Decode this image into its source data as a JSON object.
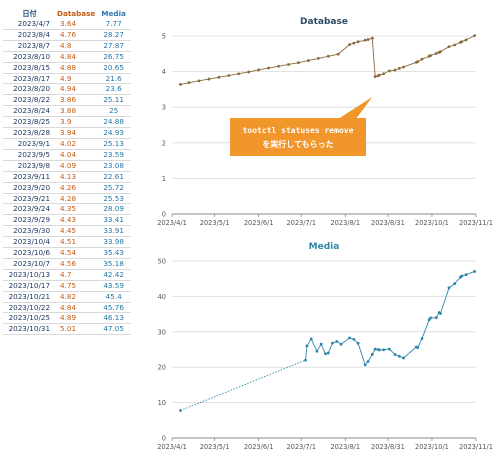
{
  "table": {
    "headers": {
      "date": "日付",
      "db": "Database",
      "media": "Media"
    },
    "rows": [
      {
        "date": "2023/4/7",
        "db": "3.64",
        "media": "7.77"
      },
      {
        "date": "2023/8/4",
        "db": "4.76",
        "media": "28.27"
      },
      {
        "date": "2023/8/7",
        "db": "4.8",
        "media": "27.87"
      },
      {
        "date": "2023/8/10",
        "db": "4.84",
        "media": "26.75"
      },
      {
        "date": "2023/8/15",
        "db": "4.88",
        "media": "20.65"
      },
      {
        "date": "2023/8/17",
        "db": "4.9",
        "media": "21.6"
      },
      {
        "date": "2023/8/20",
        "db": "4.94",
        "media": "23.6"
      },
      {
        "date": "2023/8/22",
        "db": "3.86",
        "media": "25.11"
      },
      {
        "date": "2023/8/24",
        "db": "3.88",
        "media": "25"
      },
      {
        "date": "2023/8/25",
        "db": "3.9",
        "media": "24.88"
      },
      {
        "date": "2023/8/28",
        "db": "3.94",
        "media": "24.93"
      },
      {
        "date": "2023/9/1",
        "db": "4.02",
        "media": "25.13"
      },
      {
        "date": "2023/9/5",
        "db": "4.04",
        "media": "23.59"
      },
      {
        "date": "2023/9/8",
        "db": "4.09",
        "media": "23.08"
      },
      {
        "date": "2023/9/11",
        "db": "4.13",
        "media": "22.61"
      },
      {
        "date": "2023/9/20",
        "db": "4.26",
        "media": "25.72"
      },
      {
        "date": "2023/9/21",
        "db": "4.28",
        "media": "25.53"
      },
      {
        "date": "2023/9/24",
        "db": "4.35",
        "media": "28.09"
      },
      {
        "date": "2023/9/29",
        "db": "4.43",
        "media": "33.41"
      },
      {
        "date": "2023/9/30",
        "db": "4.45",
        "media": "33.91"
      },
      {
        "date": "2023/10/4",
        "db": "4.51",
        "media": "33.98"
      },
      {
        "date": "2023/10/6",
        "db": "4.54",
        "media": "35.43"
      },
      {
        "date": "2023/10/7",
        "db": "4.56",
        "media": "35.18"
      },
      {
        "date": "2023/10/13",
        "db": "4.7",
        "media": "42.42"
      },
      {
        "date": "2023/10/17",
        "db": "4.75",
        "media": "43.59"
      },
      {
        "date": "2023/10/21",
        "db": "4.82",
        "media": "45.4"
      },
      {
        "date": "2023/10/22",
        "db": "4.84",
        "media": "45.76"
      },
      {
        "date": "2023/10/25",
        "db": "4.89",
        "media": "46.13"
      },
      {
        "date": "2023/10/31",
        "db": "5.01",
        "media": "47.05"
      }
    ]
  },
  "colors": {
    "db": "#c55a11",
    "media": "#2e86ab",
    "db_line": "#8b6a3e",
    "callout": "#f0962b"
  },
  "chart_data": [
    {
      "type": "line",
      "title": "Database",
      "xlabel": "",
      "ylabel": "",
      "x_ticks": [
        "2023/4/1",
        "2023/5/1",
        "2023/6/1",
        "2023/7/1",
        "2023/8/1",
        "2023/8/31",
        "2023/10/1",
        "2023/11/1"
      ],
      "xlim": [
        "2023/4/1",
        "2023/11/1"
      ],
      "ylim": [
        0,
        5
      ],
      "y_ticks": [
        0,
        1,
        2,
        3,
        4,
        5
      ],
      "grid": "horizontal",
      "series": [
        {
          "x": [
            "2023/4/7",
            "2023/4/13",
            "2023/4/20",
            "2023/4/27",
            "2023/5/4",
            "2023/5/11",
            "2023/5/18",
            "2023/5/25",
            "2023/6/1",
            "2023/6/8",
            "2023/6/15",
            "2023/6/22",
            "2023/6/29",
            "2023/7/6",
            "2023/7/13",
            "2023/7/20",
            "2023/7/27",
            "2023/8/4",
            "2023/8/7",
            "2023/8/10",
            "2023/8/15",
            "2023/8/17",
            "2023/8/20",
            "2023/8/22",
            "2023/8/24",
            "2023/8/25",
            "2023/8/28",
            "2023/9/1",
            "2023/9/5",
            "2023/9/8",
            "2023/9/11",
            "2023/9/20",
            "2023/9/21",
            "2023/9/24",
            "2023/9/29",
            "2023/9/30",
            "2023/10/4",
            "2023/10/6",
            "2023/10/7",
            "2023/10/13",
            "2023/10/17",
            "2023/10/21",
            "2023/10/22",
            "2023/10/25",
            "2023/10/31"
          ],
          "y": [
            3.64,
            3.69,
            3.74,
            3.79,
            3.84,
            3.89,
            3.94,
            3.99,
            4.05,
            4.1,
            4.15,
            4.2,
            4.25,
            4.31,
            4.37,
            4.43,
            4.49,
            4.76,
            4.8,
            4.84,
            4.88,
            4.9,
            4.94,
            3.86,
            3.88,
            3.9,
            3.94,
            4.02,
            4.04,
            4.09,
            4.13,
            4.26,
            4.28,
            4.35,
            4.43,
            4.45,
            4.51,
            4.54,
            4.56,
            4.7,
            4.75,
            4.82,
            4.84,
            4.89,
            5.01
          ]
        }
      ],
      "annotation": {
        "text_1": "tootctl statuses remove",
        "text_2": "を実行してもらった"
      }
    },
    {
      "type": "line",
      "title": "Media",
      "xlabel": "",
      "ylabel": "",
      "x_ticks": [
        "2023/4/1",
        "2023/5/1",
        "2023/6/1",
        "2023/7/1",
        "2023/8/1",
        "2023/8/31",
        "2023/10/1",
        "2023/11/1"
      ],
      "xlim": [
        "2023/4/1",
        "2023/11/1"
      ],
      "ylim": [
        0,
        50
      ],
      "y_ticks": [
        0,
        10,
        20,
        30,
        40,
        50
      ],
      "grid": "horizontal",
      "series": [
        {
          "x": [
            "2023/4/7",
            "2023/7/4",
            "2023/7/5",
            "2023/7/8",
            "2023/7/12",
            "2023/7/15",
            "2023/7/18",
            "2023/7/20",
            "2023/7/23",
            "2023/7/26",
            "2023/7/29",
            "2023/8/4",
            "2023/8/7",
            "2023/8/10",
            "2023/8/15",
            "2023/8/17",
            "2023/8/20",
            "2023/8/22",
            "2023/8/24",
            "2023/8/25",
            "2023/8/28",
            "2023/9/1",
            "2023/9/5",
            "2023/9/8",
            "2023/9/11",
            "2023/9/20",
            "2023/9/21",
            "2023/9/24",
            "2023/9/29",
            "2023/9/30",
            "2023/10/4",
            "2023/10/6",
            "2023/10/7",
            "2023/10/13",
            "2023/10/17",
            "2023/10/21",
            "2023/10/22",
            "2023/10/25",
            "2023/10/31"
          ],
          "y": [
            7.77,
            22,
            26,
            28,
            24.5,
            26.5,
            23.8,
            24,
            26.8,
            27.3,
            26.5,
            28.27,
            27.87,
            26.75,
            20.65,
            21.6,
            23.6,
            25.11,
            25,
            24.88,
            24.93,
            25.13,
            23.59,
            23.08,
            22.61,
            25.72,
            25.53,
            28.09,
            33.41,
            33.91,
            33.98,
            35.43,
            35.18,
            42.42,
            43.59,
            45.4,
            45.76,
            46.13,
            47.05
          ],
          "dotted_until_index": 1
        }
      ]
    }
  ]
}
